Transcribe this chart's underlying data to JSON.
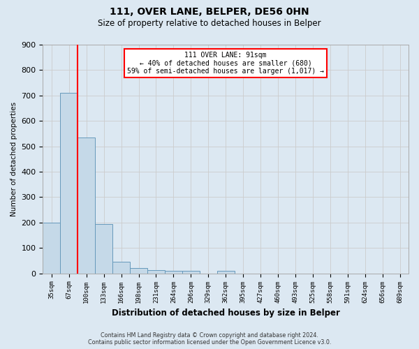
{
  "title": "111, OVER LANE, BELPER, DE56 0HN",
  "subtitle": "Size of property relative to detached houses in Belper",
  "xlabel": "Distribution of detached houses by size in Belper",
  "ylabel": "Number of detached properties",
  "categories": [
    "35sqm",
    "67sqm",
    "100sqm",
    "133sqm",
    "166sqm",
    "198sqm",
    "231sqm",
    "264sqm",
    "296sqm",
    "329sqm",
    "362sqm",
    "395sqm",
    "427sqm",
    "460sqm",
    "493sqm",
    "525sqm",
    "558sqm",
    "591sqm",
    "624sqm",
    "656sqm",
    "689sqm"
  ],
  "values": [
    200,
    710,
    535,
    193,
    46,
    20,
    14,
    10,
    10,
    0,
    10,
    0,
    0,
    0,
    0,
    0,
    0,
    0,
    0,
    0,
    0
  ],
  "bar_color": "#c5d9e8",
  "bar_edge_color": "#6699bb",
  "vline_color": "red",
  "annotation_lines": [
    "111 OVER LANE: 91sqm",
    "← 40% of detached houses are smaller (680)",
    "59% of semi-detached houses are larger (1,017) →"
  ],
  "ylim": [
    0,
    900
  ],
  "yticks": [
    0,
    100,
    200,
    300,
    400,
    500,
    600,
    700,
    800,
    900
  ],
  "grid_color": "#cccccc",
  "background_color": "#dce8f2",
  "footer_line1": "Contains HM Land Registry data © Crown copyright and database right 2024.",
  "footer_line2": "Contains public sector information licensed under the Open Government Licence v3.0."
}
